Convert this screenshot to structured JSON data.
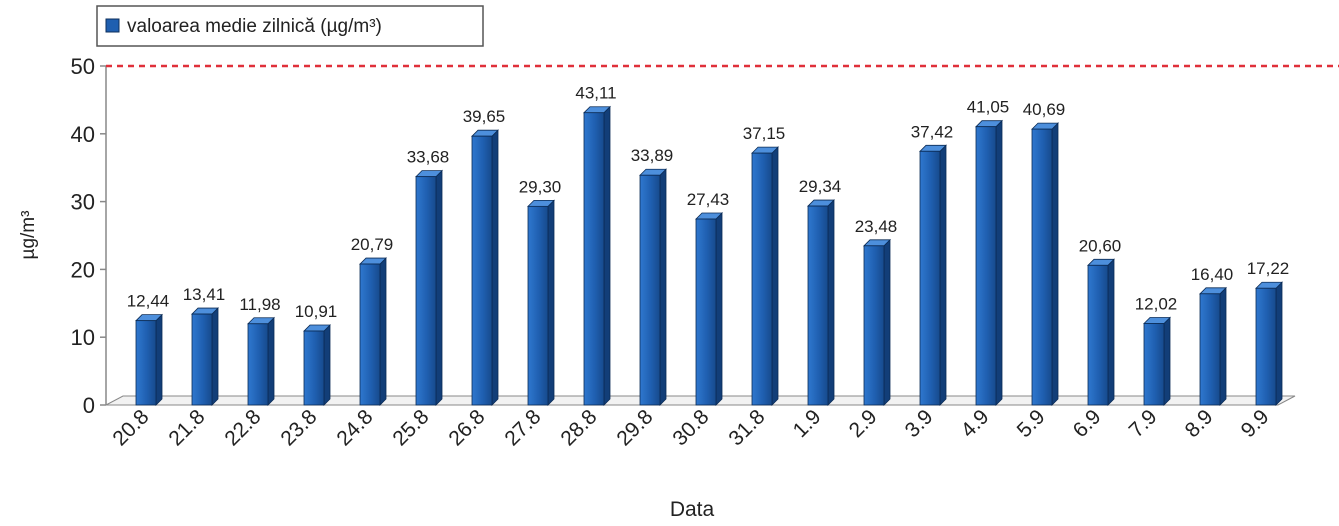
{
  "chart_data": {
    "type": "bar",
    "title": "",
    "xlabel": "Data",
    "ylabel": "µg/m³",
    "ylim": [
      0,
      50
    ],
    "yticks": [
      0,
      10,
      20,
      30,
      40,
      50
    ],
    "grid": false,
    "legend_position": "top-left",
    "reference_line": {
      "value": 50,
      "color": "#e0303a",
      "style": "dashed"
    },
    "bar_color": "#1f5fb0",
    "categories": [
      "20.8",
      "21.8",
      "22.8",
      "23.8",
      "24.8",
      "25.8",
      "26.8",
      "27.8",
      "28.8",
      "29.8",
      "30.8",
      "31.8",
      "1.9",
      "2.9",
      "3.9",
      "4.9",
      "5.9",
      "6.9",
      "7.9",
      "8.9",
      "9.9"
    ],
    "series": [
      {
        "name": "valoarea medie zilnică (µg/m³)",
        "values": [
          12.44,
          13.41,
          11.98,
          10.91,
          20.79,
          33.68,
          39.65,
          29.3,
          43.11,
          33.89,
          27.43,
          37.15,
          29.34,
          23.48,
          37.42,
          41.05,
          40.69,
          20.6,
          12.02,
          16.4,
          17.22
        ],
        "labels": [
          "12,44",
          "13,41",
          "11,98",
          "10,91",
          "20,79",
          "33,68",
          "39,65",
          "29,30",
          "43,11",
          "33,89",
          "27,43",
          "37,15",
          "29,34",
          "23,48",
          "37,42",
          "41,05",
          "40,69",
          "20,60",
          "12,02",
          "16,40",
          "17,22"
        ]
      }
    ]
  }
}
